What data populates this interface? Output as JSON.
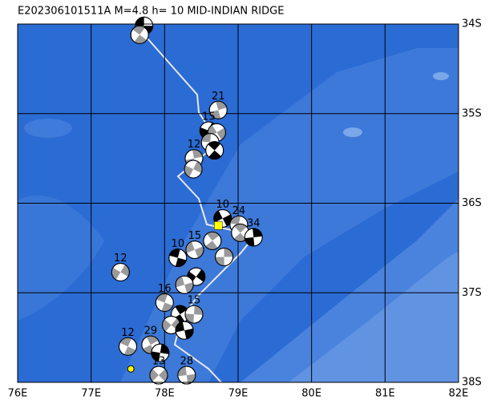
{
  "map": {
    "title": "E202306101511A M=4.8 h= 10 MID-INDIAN RIDGE",
    "xlim": [
      76,
      82
    ],
    "ylim": [
      -38,
      -34
    ],
    "xticks": [
      {
        "value": 76,
        "label": "76E"
      },
      {
        "value": 77,
        "label": "77E"
      },
      {
        "value": 78,
        "label": "78E"
      },
      {
        "value": 79,
        "label": "79E"
      },
      {
        "value": 80,
        "label": "80E"
      },
      {
        "value": 81,
        "label": "81E"
      },
      {
        "value": 82,
        "label": "82E"
      }
    ],
    "yticks": [
      {
        "value": -34,
        "label": "34S"
      },
      {
        "value": -35,
        "label": "35S"
      },
      {
        "value": -36,
        "label": "36S"
      },
      {
        "value": -37,
        "label": "37S"
      },
      {
        "value": -38,
        "label": "38S"
      }
    ],
    "main_event": {
      "lon": 78.73,
      "lat": -36.25
    },
    "marker": {
      "lon": 77.54,
      "lat": -37.85
    },
    "events": [
      {
        "lon": 77.72,
        "lat": -34.02
      },
      {
        "lon": 77.66,
        "lat": -34.12
      },
      {
        "lon": 78.73,
        "lat": -34.96,
        "label": "21"
      },
      {
        "lon": 78.6,
        "lat": -35.19,
        "label": "15"
      },
      {
        "lon": 78.71,
        "lat": -35.21
      },
      {
        "lon": 78.62,
        "lat": -35.32
      },
      {
        "lon": 78.68,
        "lat": -35.41
      },
      {
        "lon": 78.4,
        "lat": -35.5,
        "label": "12"
      },
      {
        "lon": 78.39,
        "lat": -35.62
      },
      {
        "lon": 78.79,
        "lat": -36.17,
        "label": "10"
      },
      {
        "lon": 79.01,
        "lat": -36.24,
        "label": "24"
      },
      {
        "lon": 79.03,
        "lat": -36.33
      },
      {
        "lon": 79.21,
        "lat": -36.38,
        "label": "34"
      },
      {
        "lon": 77.4,
        "lat": -36.77,
        "label": "12"
      },
      {
        "lon": 78.41,
        "lat": -36.52,
        "label": "15"
      },
      {
        "lon": 78.18,
        "lat": -36.61,
        "label": "10"
      },
      {
        "lon": 78.65,
        "lat": -36.42
      },
      {
        "lon": 78.81,
        "lat": -36.6
      },
      {
        "lon": 78.43,
        "lat": -36.82
      },
      {
        "lon": 78.27,
        "lat": -36.91
      },
      {
        "lon": 78.0,
        "lat": -37.11,
        "label": "16"
      },
      {
        "lon": 78.21,
        "lat": -37.24
      },
      {
        "lon": 78.4,
        "lat": -37.24,
        "label": "15"
      },
      {
        "lon": 78.09,
        "lat": -37.36
      },
      {
        "lon": 78.27,
        "lat": -37.42
      },
      {
        "lon": 77.5,
        "lat": -37.6,
        "label": "12"
      },
      {
        "lon": 77.81,
        "lat": -37.58,
        "label": "29"
      },
      {
        "lon": 77.94,
        "lat": -37.67
      },
      {
        "lon": 77.92,
        "lat": -37.92,
        "label": "13"
      },
      {
        "lon": 78.3,
        "lat": -37.92,
        "label": "28"
      }
    ]
  }
}
